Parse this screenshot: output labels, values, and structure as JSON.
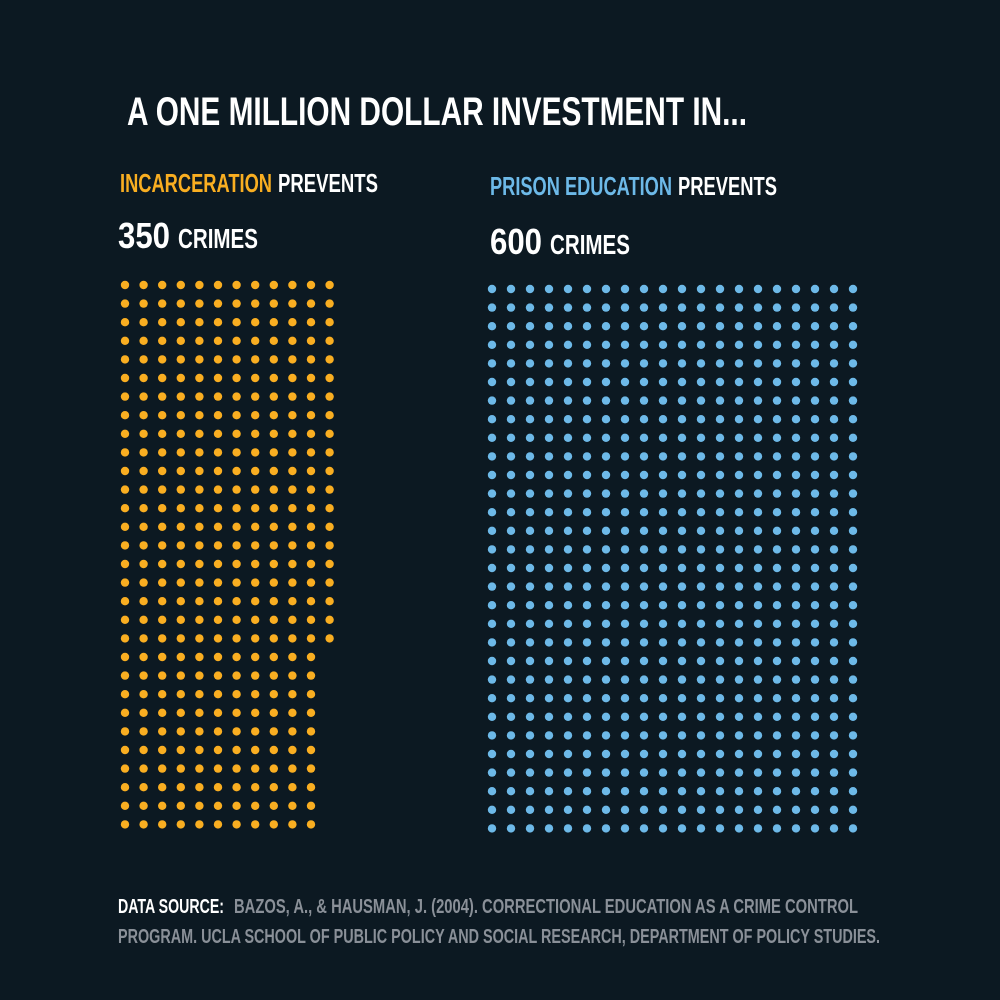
{
  "chart_data": {
    "type": "unit",
    "title": "A ONE MILLION DOLLAR INVESTMENT IN...",
    "verb": "PREVENTS",
    "unit": "CRIMES",
    "series": [
      {
        "name": "INCARCERATION",
        "color": "#f9ae21",
        "value": 350
      },
      {
        "name": "PRISON EDUCATION",
        "color": "#6db9e8",
        "value": 600
      }
    ],
    "source_label": "DATA SOURCE:",
    "source": [
      "BAZOS, A., & HAUSMAN, J. (2004). CORRECTIONAL EDUCATION AS A CRIME CONTROL",
      "PROGRAM. UCLA SCHOOL OF PUBLIC POLICY AND SOCIAL RESEARCH, DEPARTMENT OF POLICY STUDIES."
    ]
  }
}
